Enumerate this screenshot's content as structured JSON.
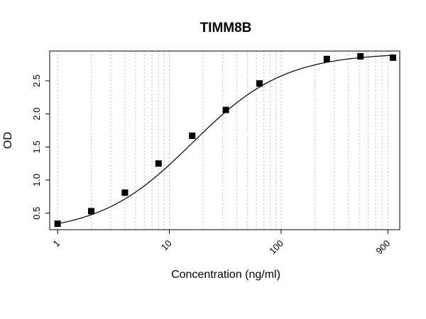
{
  "chart_data": {
    "type": "scatter",
    "title": "TIMM8B",
    "xlabel": "Concentration (ng/ml)",
    "ylabel": "OD",
    "x_scale": "log",
    "xlim": [
      0.85,
      1150
    ],
    "ylim": [
      0.25,
      2.95
    ],
    "x_tick_labels": [
      "1",
      "10",
      "100",
      "900"
    ],
    "x_ticks": [
      1,
      10,
      100,
      900
    ],
    "y_tick_labels": [
      "0.5",
      "1.0",
      "1.5",
      "2.0",
      "2.5"
    ],
    "y_ticks": [
      0.5,
      1.0,
      1.5,
      2.0,
      2.5
    ],
    "grid": "vertical dotted at log minor ticks",
    "series": [
      {
        "marker": "filled-square",
        "points": [
          {
            "x": 1,
            "y": 0.34
          },
          {
            "x": 2,
            "y": 0.53
          },
          {
            "x": 4,
            "y": 0.81
          },
          {
            "x": 8,
            "y": 1.25
          },
          {
            "x": 16,
            "y": 1.67
          },
          {
            "x": 32,
            "y": 2.06
          },
          {
            "x": 64,
            "y": 2.46
          },
          {
            "x": 256,
            "y": 2.83
          },
          {
            "x": 512,
            "y": 2.87
          },
          {
            "x": 1000,
            "y": 2.85
          }
        ]
      }
    ],
    "fit": {
      "type": "4PL",
      "bottom": 0.2,
      "top": 2.92,
      "ec50": 16,
      "hill": 1.05
    },
    "colors": {
      "points": "#000000",
      "curve": "#000000",
      "grid": "#bdbdbd"
    }
  }
}
